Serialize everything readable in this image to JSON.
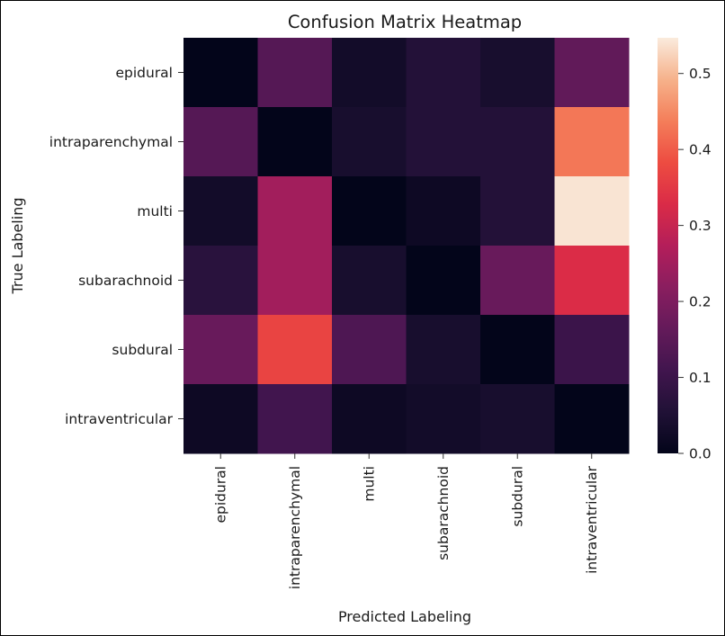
{
  "chart_data": {
    "type": "heatmap",
    "title": "Confusion Matrix Heatmap",
    "xlabel": "Predicted Labeling",
    "ylabel": "True Labeling",
    "x_categories": [
      "epidural",
      "intraparenchymal",
      "multi",
      "subarachnoid",
      "subdural",
      "intraventricular"
    ],
    "y_categories": [
      "epidural",
      "intraparenchymal",
      "multi",
      "subarachnoid",
      "subdural",
      "intraventricular"
    ],
    "values": [
      [
        0.0,
        0.14,
        0.03,
        0.06,
        0.04,
        0.16
      ],
      [
        0.14,
        0.0,
        0.04,
        0.06,
        0.06,
        0.43
      ],
      [
        0.03,
        0.25,
        0.0,
        0.02,
        0.06,
        0.54
      ],
      [
        0.07,
        0.25,
        0.04,
        0.0,
        0.17,
        0.33
      ],
      [
        0.17,
        0.37,
        0.13,
        0.04,
        0.0,
        0.1
      ],
      [
        0.02,
        0.11,
        0.02,
        0.03,
        0.04,
        0.0
      ]
    ],
    "colorbar": {
      "range": [
        0.0,
        0.547
      ],
      "ticks": [
        0.0,
        0.1,
        0.2,
        0.3,
        0.4,
        0.5
      ],
      "tick_labels": [
        "0.0",
        "0.1",
        "0.2",
        "0.3",
        "0.4",
        "0.5"
      ]
    },
    "colormap": "rocket",
    "grid": false
  }
}
